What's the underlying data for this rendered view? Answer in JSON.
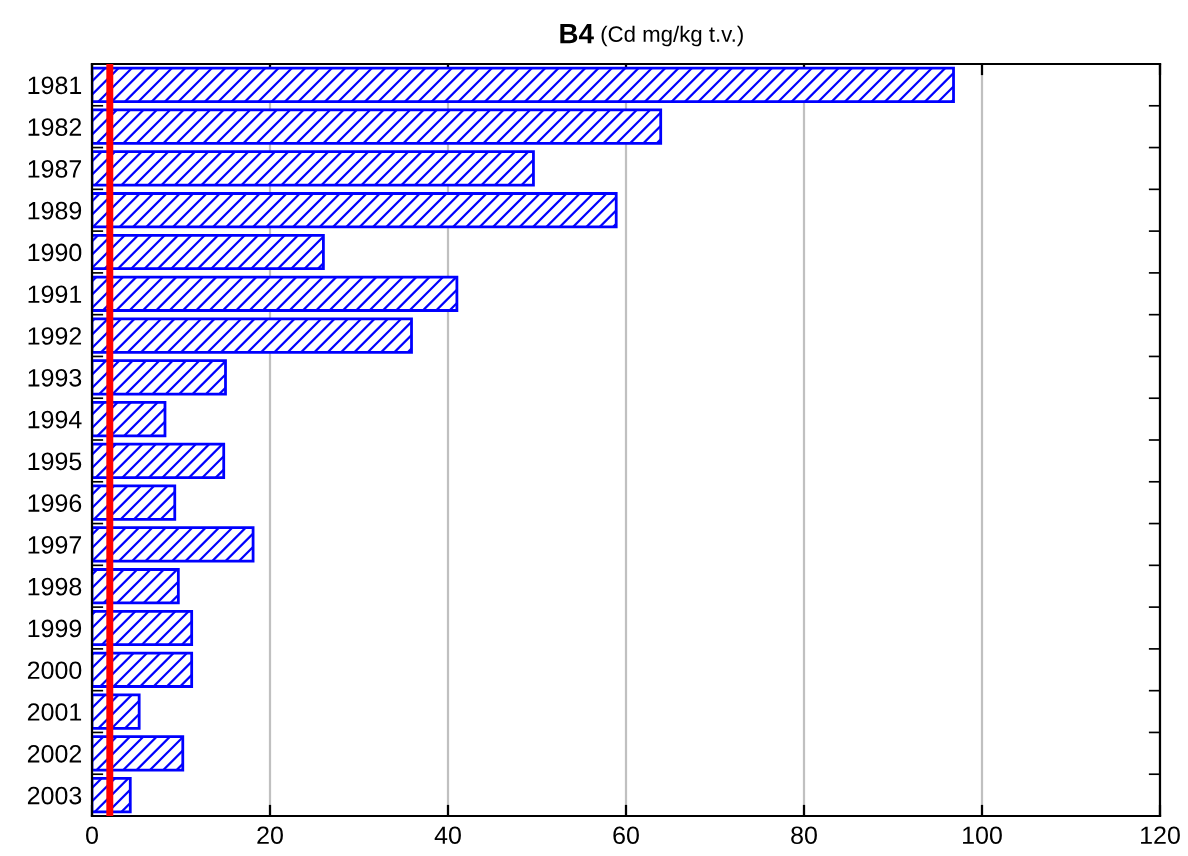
{
  "chart_data": {
    "type": "bar",
    "orientation": "horizontal",
    "title": "B4",
    "subtitle": "(Cd mg/kg t.v.)",
    "categories": [
      "1981",
      "1982",
      "1987",
      "1989",
      "1990",
      "1991",
      "1992",
      "1993",
      "1994",
      "1995",
      "1996",
      "1997",
      "1998",
      "1999",
      "2000",
      "2001",
      "2002",
      "2003"
    ],
    "values": [
      96.8,
      63.9,
      49.6,
      58.9,
      26.0,
      41.0,
      35.9,
      15.0,
      8.2,
      14.8,
      9.3,
      18.1,
      9.7,
      11.2,
      11.2,
      5.3,
      10.2,
      4.3
    ],
    "color": "#0000ff",
    "xlim": [
      0,
      120
    ],
    "xticks": [
      0,
      20,
      40,
      60,
      80,
      100,
      120
    ],
    "grid": "x",
    "ref_lines": [
      {
        "axis": "x",
        "value": 2,
        "color": "#ff0000"
      }
    ]
  }
}
